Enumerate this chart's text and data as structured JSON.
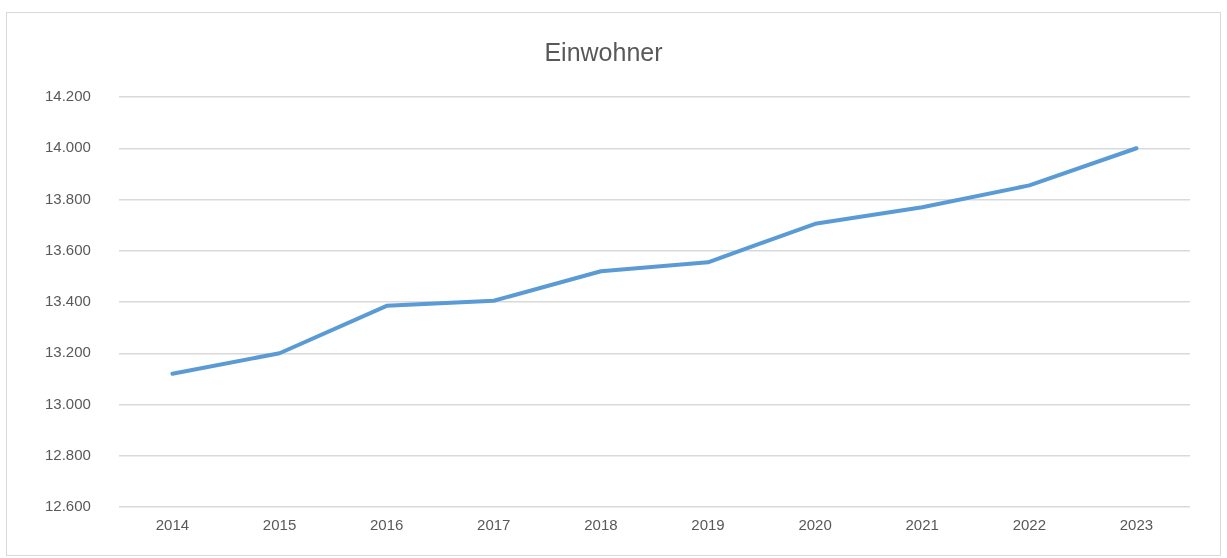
{
  "chart_data": {
    "type": "line",
    "title": "Einwohner",
    "categories": [
      "2014",
      "2015",
      "2016",
      "2017",
      "2018",
      "2019",
      "2020",
      "2021",
      "2022",
      "2023"
    ],
    "series": [
      {
        "color": "#5b9bd5",
        "values": [
          13120,
          13200,
          13385,
          13405,
          13520,
          13555,
          13705,
          13770,
          13855,
          14000
        ]
      }
    ],
    "ylim": [
      12600,
      14200
    ],
    "yticks": [
      {
        "value": 12600,
        "label": "12.600"
      },
      {
        "value": 12800,
        "label": "12.800"
      },
      {
        "value": 13000,
        "label": "13.000"
      },
      {
        "value": 13200,
        "label": "13.200"
      },
      {
        "value": 13400,
        "label": "13.400"
      },
      {
        "value": 13600,
        "label": "13.600"
      },
      {
        "value": 13800,
        "label": "13.800"
      },
      {
        "value": 14000,
        "label": "14.000"
      },
      {
        "value": 14200,
        "label": "14.200"
      }
    ],
    "grid": "y",
    "legend": false,
    "marker": "none",
    "line_style": "solid"
  }
}
